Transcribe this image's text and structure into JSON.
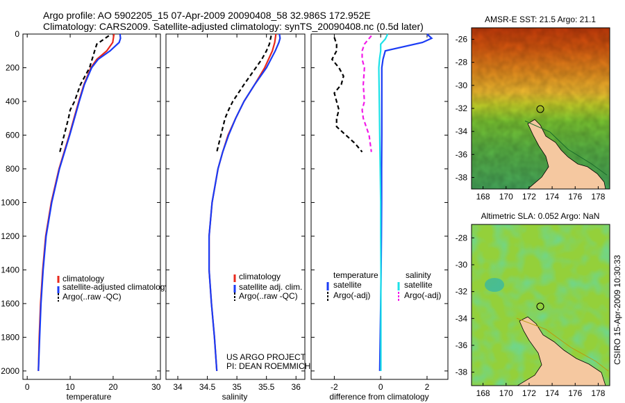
{
  "header": {
    "line1": "Argo profile: AO 5902205_15 07-Apr-2009 20090408_58 32.986S 172.952E",
    "line2": "Climatology: CARS2009. Satellite-adjusted climatology: synTS_20090408.nc (0.5d later)"
  },
  "side_label": "CSIRO 15-Apr-2009 10:30:33",
  "chart_data": [
    {
      "type": "line",
      "xlabel": "temperature",
      "ylim": [
        2050,
        0
      ],
      "xlim": [
        -1,
        31
      ],
      "x_ticks": [
        "0",
        "10",
        "20",
        "30"
      ],
      "x_tick_values": [
        0,
        10,
        20,
        30
      ],
      "y_ticks": [
        "0",
        "200",
        "400",
        "600",
        "800",
        "1000",
        "1200",
        "1400",
        "1600",
        "1800",
        "2000"
      ],
      "y_tick_values": [
        0,
        200,
        400,
        600,
        800,
        1000,
        1200,
        1400,
        1600,
        1800,
        2000
      ],
      "legend": [
        "climatology",
        "satellite-adjusted climatology",
        "Argo(..raw -QC)"
      ],
      "series": [
        {
          "name": "climatology",
          "color": "#e8291c",
          "dash": "solid",
          "depth": [
            0,
            50,
            100,
            150,
            200,
            300,
            400,
            500,
            600,
            700,
            800,
            1000,
            1200,
            1400,
            1600,
            1800,
            2000
          ],
          "values": [
            20.2,
            19.9,
            18.5,
            16.2,
            14.8,
            13.2,
            12.0,
            10.9,
            9.8,
            8.6,
            7.4,
            5.6,
            4.3,
            3.6,
            3.1,
            2.8,
            2.6
          ]
        },
        {
          "name": "satellite-adjusted climatology",
          "color": "#1a3bf5",
          "dash": "solid",
          "depth": [
            0,
            25,
            50,
            100,
            150,
            200,
            300,
            400,
            500,
            600,
            700,
            800,
            1000,
            1200,
            1400,
            1600,
            1800,
            2000
          ],
          "values": [
            21.6,
            21.7,
            21.4,
            19.3,
            16.5,
            15.0,
            13.3,
            12.1,
            11.0,
            9.9,
            8.7,
            7.5,
            5.7,
            4.4,
            3.7,
            3.2,
            2.9,
            2.6
          ]
        },
        {
          "name": "Argo(..raw -QC)",
          "color": "#000000",
          "dash": "dashed",
          "depth": [
            10,
            60,
            100,
            150,
            200,
            300,
            400,
            450,
            500,
            600,
            700
          ],
          "values": [
            19.0,
            16.2,
            15.7,
            15.1,
            14.5,
            12.4,
            11.0,
            10.0,
            9.6,
            8.6,
            7.6
          ]
        }
      ]
    },
    {
      "type": "line",
      "xlabel": "salinity",
      "ylim": [
        2050,
        0
      ],
      "xlim": [
        33.8,
        36.15
      ],
      "x_ticks": [
        "34",
        "34.5",
        "35",
        "35.5",
        "36"
      ],
      "x_tick_values": [
        34,
        34.5,
        35,
        35.5,
        36
      ],
      "legend": [
        "climatology",
        "satellite adj. clim.",
        "Argo(..raw -QC)"
      ],
      "annotation": [
        "US ARGO PROJECT",
        "PI: DEAN ROEMMICH"
      ],
      "series": [
        {
          "name": "climatology",
          "color": "#e8291c",
          "dash": "solid",
          "depth": [
            0,
            50,
            100,
            200,
            300,
            400,
            500,
            600,
            700,
            800,
            1000,
            1200,
            1400,
            1600,
            1800,
            2000
          ],
          "values": [
            35.66,
            35.64,
            35.6,
            35.47,
            35.3,
            35.12,
            34.98,
            34.85,
            34.76,
            34.68,
            34.58,
            34.53,
            34.53,
            34.57,
            34.62,
            34.66
          ]
        },
        {
          "name": "satellite adj. clim.",
          "color": "#1a3bf5",
          "dash": "solid",
          "depth": [
            0,
            25,
            50,
            100,
            200,
            300,
            400,
            500,
            600,
            700,
            800,
            1000,
            1200,
            1400,
            1600,
            1800,
            2000
          ],
          "values": [
            35.72,
            35.73,
            35.71,
            35.65,
            35.5,
            35.3,
            35.12,
            34.98,
            34.86,
            34.76,
            34.68,
            34.58,
            34.53,
            34.53,
            34.57,
            34.62,
            34.66
          ]
        },
        {
          "name": "Argo(..raw -QC)",
          "color": "#000000",
          "dash": "dashed",
          "depth": [
            10,
            60,
            100,
            150,
            200,
            300,
            400,
            450,
            500,
            600,
            700
          ],
          "values": [
            35.58,
            35.55,
            35.5,
            35.42,
            35.32,
            35.12,
            34.93,
            34.86,
            34.8,
            34.73,
            34.66
          ]
        }
      ]
    },
    {
      "type": "line",
      "xlabel": "difference from climatology",
      "ylim": [
        2050,
        0
      ],
      "xlim": [
        -3.0,
        2.9
      ],
      "x_ticks": [
        "-2",
        "0",
        "2"
      ],
      "x_tick_values": [
        -2,
        0,
        2
      ],
      "legend_left": {
        "title": "temperature",
        "items": [
          "satellite",
          "Argo(-adj)"
        ]
      },
      "legend_right": {
        "title": "salinity",
        "items": [
          "satellite",
          "Argo(-adj)"
        ]
      },
      "series": [
        {
          "name": "temperature satellite",
          "color": "#1a3bf5",
          "dash": "solid",
          "depth": [
            0,
            25,
            50,
            100,
            150,
            200,
            400,
            600,
            800,
            1000,
            1200,
            1400,
            1600,
            1800,
            2000
          ],
          "values": [
            2.0,
            2.2,
            1.8,
            0.2,
            0.1,
            0.05,
            0.05,
            0.05,
            0.04,
            0.04,
            0.03,
            0.02,
            0.0,
            -0.02,
            -0.04
          ]
        },
        {
          "name": "temperature Argo(-adj)",
          "color": "#000000",
          "dash": "dashed",
          "depth": [
            20,
            60,
            100,
            150,
            200,
            250,
            300,
            350,
            400,
            450,
            500,
            550,
            600,
            650,
            700
          ],
          "values": [
            -2.0,
            -1.9,
            -1.9,
            -2.1,
            -1.8,
            -1.6,
            -1.7,
            -2.0,
            -1.9,
            -1.8,
            -1.9,
            -1.9,
            -1.5,
            -1.1,
            -0.8
          ]
        },
        {
          "name": "salinity satellite",
          "color": "#1ce1e8",
          "dash": "solid",
          "depth": [
            0,
            30,
            60,
            100,
            150,
            200,
            400,
            600,
            800,
            1000,
            1200,
            1400,
            1600,
            1800,
            2000
          ],
          "values": [
            0.3,
            0.2,
            0.0,
            0.0,
            -0.05,
            -0.08,
            -0.06,
            -0.04,
            -0.02,
            0.0,
            0.0,
            0.01,
            0.01,
            0.01,
            0.01
          ]
        },
        {
          "name": "salinity Argo(-adj)",
          "color": "#f21ae8",
          "dash": "dashed",
          "depth": [
            10,
            60,
            100,
            150,
            200,
            300,
            400,
            450,
            500,
            600,
            700
          ],
          "values": [
            -0.4,
            -0.7,
            -0.8,
            -0.8,
            -0.7,
            -0.75,
            -0.7,
            -0.8,
            -0.75,
            -0.5,
            -0.4
          ]
        }
      ]
    },
    {
      "type": "heatmap",
      "title": "AMSR-E SST: 21.5 Argo: 21.1",
      "x_ticks": [
        "168",
        "170",
        "172",
        "174",
        "176",
        "178"
      ],
      "x_tick_values": [
        168,
        170,
        172,
        174,
        176,
        178
      ],
      "y_ticks": [
        "-26",
        "-28",
        "-30",
        "-32",
        "-34",
        "-36",
        "-38"
      ],
      "y_tick_values": [
        -26,
        -28,
        -30,
        -32,
        -34,
        -36,
        -38
      ],
      "xlim": [
        167,
        179
      ],
      "ylim": [
        -39,
        -25
      ],
      "float_position": [
        172.952,
        -32.986
      ]
    },
    {
      "type": "heatmap",
      "title": "Altimetric SLA: 0.052 Argo: NaN",
      "x_ticks": [
        "168",
        "170",
        "172",
        "174",
        "176",
        "178"
      ],
      "x_tick_values": [
        168,
        170,
        172,
        174,
        176,
        178
      ],
      "y_ticks": [
        "-28",
        "-30",
        "-32",
        "-34",
        "-36",
        "-38"
      ],
      "y_tick_values": [
        -28,
        -30,
        -32,
        -34,
        -36,
        -38
      ],
      "xlim": [
        167,
        179
      ],
      "ylim": [
        -39,
        -27
      ],
      "float_position": [
        172.952,
        -32.986
      ]
    }
  ]
}
